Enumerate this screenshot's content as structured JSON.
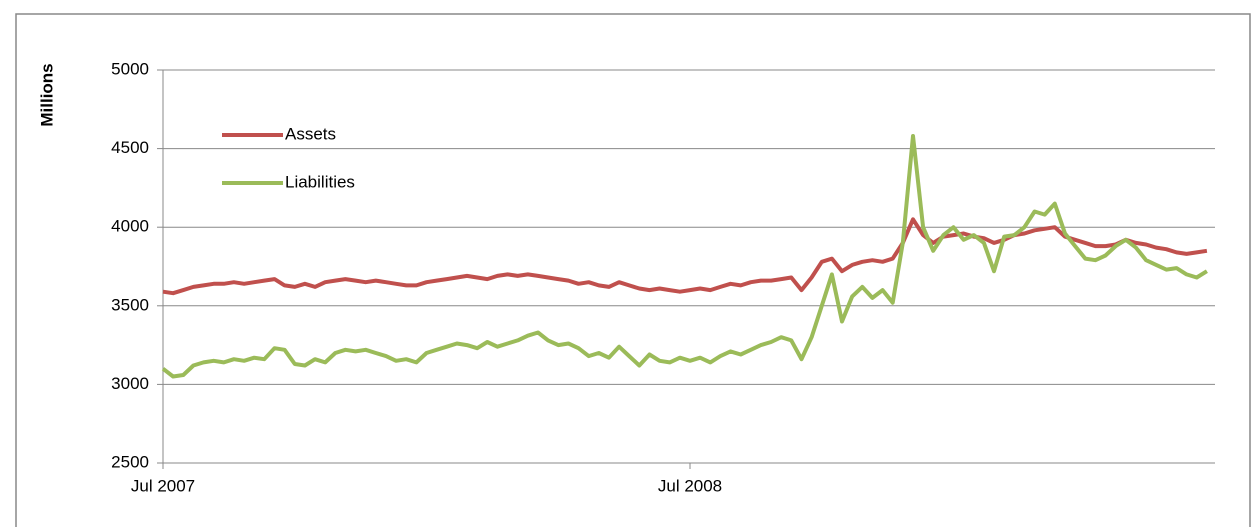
{
  "chart_data": {
    "type": "line",
    "y_label": "Millions",
    "categories": [
      "Jul 2007",
      null,
      null,
      null,
      null,
      null,
      null,
      null,
      null,
      null,
      null,
      null,
      null,
      null,
      null,
      null,
      null,
      null,
      null,
      null,
      null,
      null,
      null,
      null,
      null,
      null,
      null,
      null,
      null,
      null,
      null,
      null,
      null,
      null,
      null,
      null,
      null,
      null,
      null,
      null,
      null,
      null,
      null,
      null,
      null,
      null,
      null,
      null,
      null,
      null,
      null,
      null,
      "Jul 2008",
      null,
      null,
      null,
      null,
      null,
      null,
      null,
      null,
      null,
      null,
      null,
      null,
      null,
      null,
      null,
      null,
      null,
      null,
      null,
      null,
      null,
      null,
      null,
      null,
      null,
      null,
      null,
      null,
      null,
      null,
      null,
      null,
      null,
      null,
      null,
      null,
      null,
      null,
      null,
      null,
      null,
      null,
      null,
      null,
      null,
      null,
      null,
      null,
      null,
      null,
      null
    ],
    "series": [
      {
        "name": "Assets",
        "color": "#c0504d",
        "values": [
          3590,
          3580,
          3600,
          3620,
          3630,
          3640,
          3640,
          3650,
          3640,
          3650,
          3660,
          3670,
          3630,
          3620,
          3640,
          3620,
          3650,
          3660,
          3670,
          3660,
          3650,
          3660,
          3650,
          3640,
          3630,
          3630,
          3650,
          3660,
          3670,
          3680,
          3690,
          3680,
          3670,
          3690,
          3700,
          3690,
          3700,
          3690,
          3680,
          3670,
          3660,
          3640,
          3650,
          3630,
          3620,
          3650,
          3630,
          3610,
          3600,
          3610,
          3600,
          3590,
          3600,
          3610,
          3600,
          3620,
          3640,
          3630,
          3650,
          3660,
          3660,
          3670,
          3680,
          3600,
          3680,
          3780,
          3800,
          3720,
          3760,
          3780,
          3790,
          3780,
          3800,
          3900,
          4050,
          3950,
          3900,
          3940,
          3950,
          3960,
          3940,
          3930,
          3900,
          3920,
          3950,
          3960,
          3980,
          3990,
          4000,
          3940,
          3920,
          3900,
          3880,
          3880,
          3890,
          3920,
          3900,
          3890,
          3870,
          3860,
          3840,
          3830,
          3840,
          3850
        ]
      },
      {
        "name": "Liabilities",
        "color": "#9bbb59",
        "values": [
          3100,
          3050,
          3060,
          3120,
          3140,
          3150,
          3140,
          3160,
          3150,
          3170,
          3160,
          3230,
          3220,
          3130,
          3120,
          3160,
          3140,
          3200,
          3220,
          3210,
          3220,
          3200,
          3180,
          3150,
          3160,
          3140,
          3200,
          3220,
          3240,
          3260,
          3250,
          3230,
          3270,
          3240,
          3260,
          3280,
          3310,
          3330,
          3280,
          3250,
          3260,
          3230,
          3180,
          3200,
          3170,
          3240,
          3180,
          3120,
          3190,
          3150,
          3140,
          3170,
          3150,
          3170,
          3140,
          3180,
          3210,
          3190,
          3220,
          3250,
          3270,
          3300,
          3280,
          3160,
          3300,
          3500,
          3700,
          3400,
          3560,
          3620,
          3550,
          3600,
          3520,
          3900,
          4580,
          4000,
          3850,
          3950,
          4000,
          3920,
          3950,
          3900,
          3720,
          3940,
          3950,
          4000,
          4100,
          4080,
          4150,
          3960,
          3880,
          3800,
          3790,
          3820,
          3880,
          3920,
          3870,
          3790,
          3760,
          3730,
          3740,
          3700,
          3680,
          3720
        ]
      }
    ],
    "ylim": [
      2500,
      5000
    ],
    "yticks": [
      2500,
      3000,
      3500,
      4000,
      4500,
      5000
    ],
    "grid": true,
    "legend": "upper left"
  }
}
